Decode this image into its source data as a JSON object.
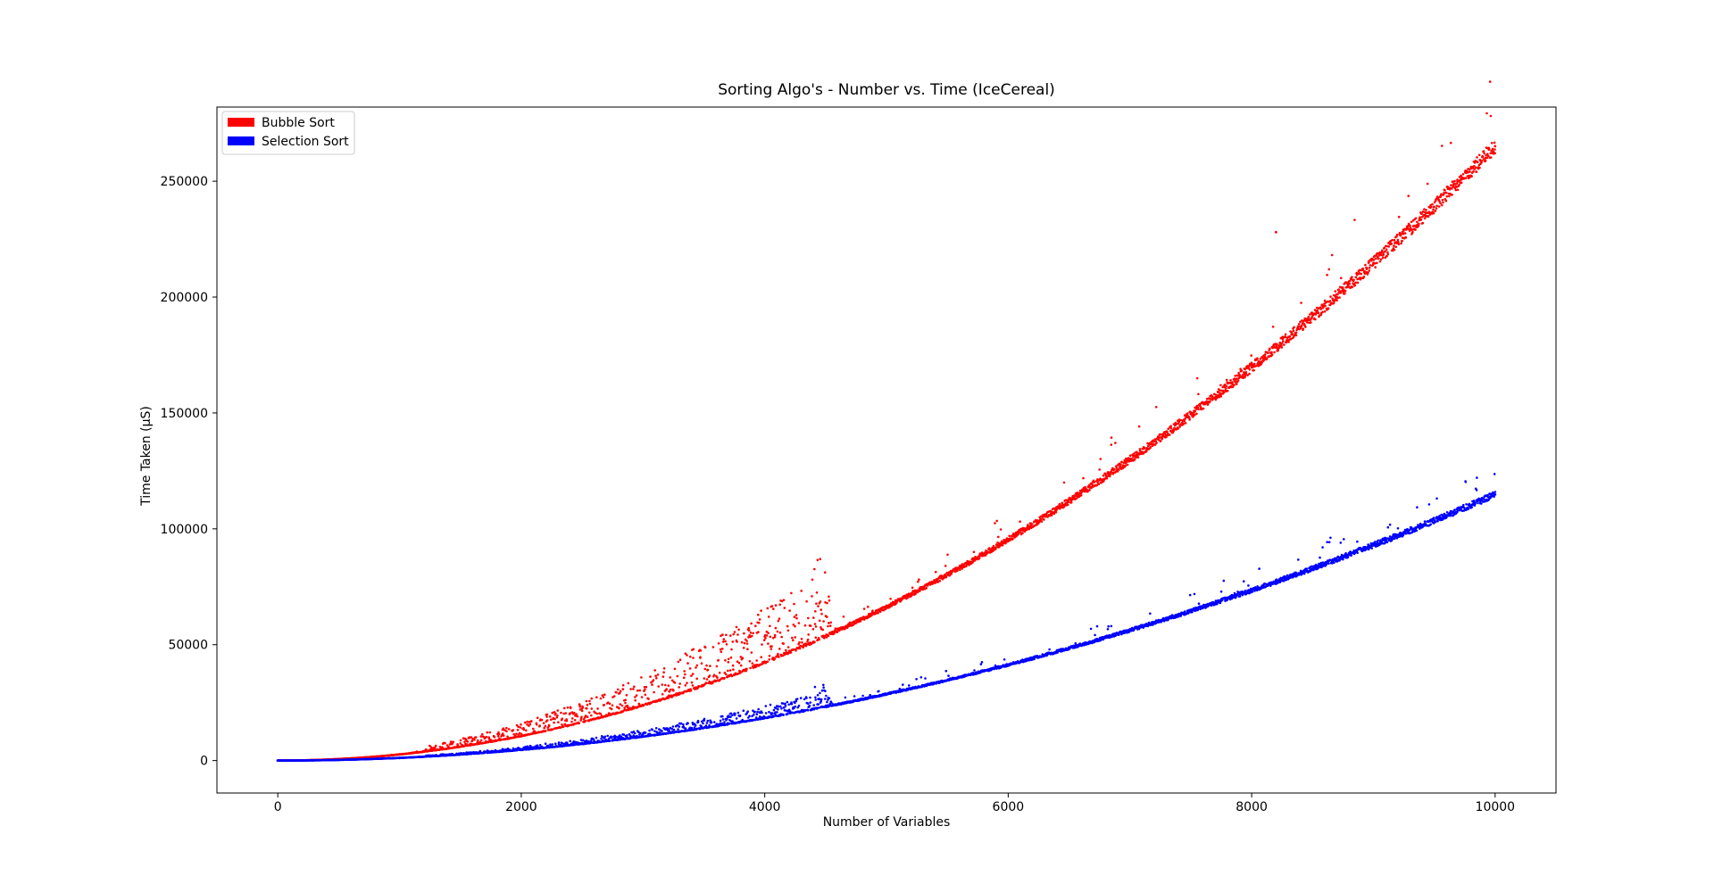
{
  "chart_data": {
    "type": "scatter",
    "title": "Sorting Algo's - Number vs. Time (IceCereal)",
    "xlabel": "Number of Variables",
    "ylabel": "Time Taken (μS)",
    "xlim": [
      -500,
      10500
    ],
    "ylim": [
      -14000,
      282000
    ],
    "xticks": [
      0,
      2000,
      4000,
      6000,
      8000,
      10000
    ],
    "xtick_labels": [
      "0",
      "2000",
      "4000",
      "6000",
      "8000",
      "10000"
    ],
    "yticks": [
      0,
      50000,
      100000,
      150000,
      200000,
      250000
    ],
    "ytick_labels": [
      "0",
      "50000",
      "100000",
      "150000",
      "200000",
      "250000"
    ],
    "grid": false,
    "legend_position": "upper-left",
    "series": [
      {
        "name": "Bubble Sort",
        "color": "#ff0000",
        "n_range": [
          0,
          10000
        ],
        "model": "y = 0.002651 * x^2",
        "sample_x": [
          0,
          1000,
          2000,
          3000,
          4000,
          4400,
          5000,
          6000,
          6600,
          7000,
          8000,
          8200,
          9000,
          10000
        ],
        "sample_y": [
          0,
          2700,
          10600,
          23900,
          42400,
          51300,
          66300,
          95400,
          115500,
          129900,
          169700,
          228000,
          214700,
          265100
        ]
      },
      {
        "name": "Selection Sort",
        "color": "#0000ff",
        "n_range": [
          0,
          10000
        ],
        "model": "y = 0.001148 * x^2",
        "sample_x": [
          0,
          1000,
          2000,
          3000,
          4000,
          4400,
          5000,
          6000,
          6600,
          7000,
          8000,
          9000,
          10000
        ],
        "sample_y": [
          0,
          1100,
          4600,
          10300,
          18400,
          22200,
          28700,
          41300,
          50000,
          56300,
          73500,
          93000,
          114800
        ]
      }
    ]
  }
}
